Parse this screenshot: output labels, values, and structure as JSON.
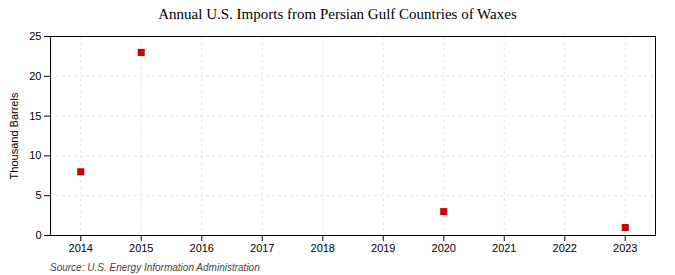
{
  "chart_data": {
    "type": "scatter",
    "title": "Annual U.S. Imports from Persian Gulf Countries of Waxes",
    "ylabel": "Thousand Barrels",
    "source": "Source: U.S. Energy Information Administration",
    "x": [
      2014,
      2015,
      2020,
      2023
    ],
    "values": [
      8,
      23,
      3,
      1
    ],
    "color": "#cc0000",
    "marker": "square",
    "xlim": [
      2013.5,
      2023.5
    ],
    "xticks": [
      2014,
      2015,
      2016,
      2017,
      2018,
      2019,
      2020,
      2021,
      2022,
      2023
    ],
    "ylim": [
      0,
      25
    ],
    "yticks": [
      0,
      5,
      10,
      15,
      20,
      25
    ],
    "grid": true
  }
}
